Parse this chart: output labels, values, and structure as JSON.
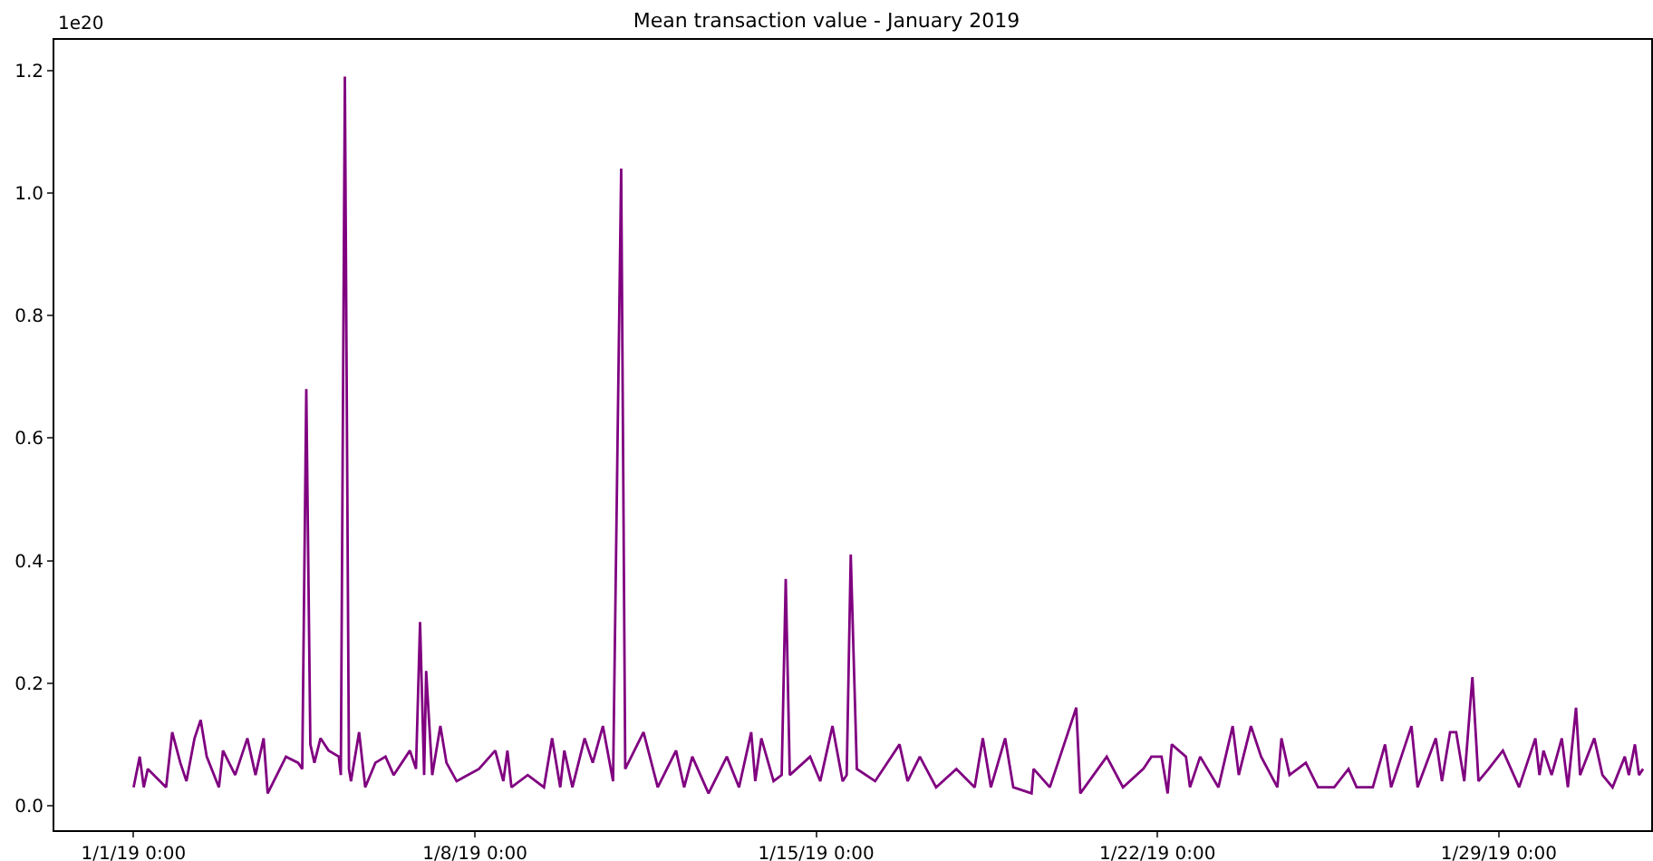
{
  "chart_data": {
    "type": "line",
    "title": "Mean transaction value - January 2019",
    "annotations": [
      "1e20"
    ],
    "x": [
      "2019-01-01T00:00",
      "2019-01-01T03:00",
      "2019-01-01T05:00",
      "2019-01-01T07:00",
      "2019-01-01T16:00",
      "2019-01-01T19:00",
      "2019-01-01T23:00",
      "2019-01-02T02:00",
      "2019-01-02T06:00",
      "2019-01-02T09:00",
      "2019-01-02T12:00",
      "2019-01-02T18:00",
      "2019-01-02T20:00",
      "2019-01-03T02:00",
      "2019-01-03T08:00",
      "2019-01-03T12:00",
      "2019-01-03T16:00",
      "2019-01-03T18:00",
      "2019-01-04T03:00",
      "2019-01-04T09:00",
      "2019-01-04T11:00",
      "2019-01-04T13:00",
      "2019-01-04T15:00",
      "2019-01-04T17:00",
      "2019-01-04T20:00",
      "2019-01-05T00:00",
      "2019-01-05T05:00",
      "2019-01-05T06:00",
      "2019-01-05T08:00",
      "2019-01-05T10:00",
      "2019-01-05T11:00",
      "2019-01-05T15:00",
      "2019-01-05T18:00",
      "2019-01-05T23:00",
      "2019-01-06T04:00",
      "2019-01-06T08:00",
      "2019-01-06T16:00",
      "2019-01-06T19:00",
      "2019-01-06T21:00",
      "2019-01-06T23:00",
      "2019-01-07T00:00",
      "2019-01-07T03:00",
      "2019-01-07T07:00",
      "2019-01-07T10:00",
      "2019-01-07T15:00",
      "2019-01-08T02:00",
      "2019-01-08T10:00",
      "2019-01-08T14:00",
      "2019-01-08T16:00",
      "2019-01-08T18:00",
      "2019-01-09T02:00",
      "2019-01-09T10:00",
      "2019-01-09T14:00",
      "2019-01-09T18:00",
      "2019-01-09T20:00",
      "2019-01-10T00:00",
      "2019-01-10T06:00",
      "2019-01-10T10:00",
      "2019-01-10T15:00",
      "2019-01-10T20:00",
      "2019-01-11T00:00",
      "2019-01-11T02:00",
      "2019-01-11T11:00",
      "2019-01-11T18:00",
      "2019-01-12T03:00",
      "2019-01-12T07:00",
      "2019-01-12T11:00",
      "2019-01-12T19:00",
      "2019-01-13T04:00",
      "2019-01-13T10:00",
      "2019-01-13T16:00",
      "2019-01-13T18:00",
      "2019-01-13T21:00",
      "2019-01-14T03:00",
      "2019-01-14T07:00",
      "2019-01-14T09:00",
      "2019-01-14T11:00",
      "2019-01-14T21:00",
      "2019-01-15T02:00",
      "2019-01-15T08:00",
      "2019-01-15T13:00",
      "2019-01-15T15:00",
      "2019-01-15T17:00",
      "2019-01-15T20:00",
      "2019-01-16T05:00",
      "2019-01-16T17:00",
      "2019-01-16T21:00",
      "2019-01-17T03:00",
      "2019-01-17T11:00",
      "2019-01-17T21:00",
      "2019-01-18T06:00",
      "2019-01-18T10:00",
      "2019-01-18T14:00",
      "2019-01-18T21:00",
      "2019-01-19T01:00",
      "2019-01-19T10:00",
      "2019-01-19T11:00",
      "2019-01-19T19:00",
      "2019-01-20T03:00",
      "2019-01-20T08:00",
      "2019-01-20T10:00",
      "2019-01-20T23:00",
      "2019-01-21T07:00",
      "2019-01-21T17:00",
      "2019-01-21T21:00",
      "2019-01-22T02:00",
      "2019-01-22T05:00",
      "2019-01-22T07:00",
      "2019-01-22T14:00",
      "2019-01-22T16:00",
      "2019-01-22T21:00",
      "2019-01-23T06:00",
      "2019-01-23T13:00",
      "2019-01-23T16:00",
      "2019-01-23T22:00",
      "2019-01-24T03:00",
      "2019-01-24T11:00",
      "2019-01-24T13:00",
      "2019-01-24T17:00",
      "2019-01-25T01:00",
      "2019-01-25T07:00",
      "2019-01-25T15:00",
      "2019-01-25T22:00",
      "2019-01-26T02:00",
      "2019-01-26T10:00",
      "2019-01-26T16:00",
      "2019-01-26T19:00",
      "2019-01-27T05:00",
      "2019-01-27T08:00",
      "2019-01-27T17:00",
      "2019-01-27T20:00",
      "2019-01-28T00:00",
      "2019-01-28T03:00",
      "2019-01-28T07:00",
      "2019-01-28T11:00",
      "2019-01-28T14:00",
      "2019-01-28T19:00",
      "2019-01-29T02:00",
      "2019-01-29T10:00",
      "2019-01-29T18:00",
      "2019-01-29T20:00",
      "2019-01-29T22:00",
      "2019-01-30T02:00",
      "2019-01-30T07:00",
      "2019-01-30T10:00",
      "2019-01-30T14:00",
      "2019-01-30T16:00",
      "2019-01-30T23:00",
      "2019-01-31T03:00",
      "2019-01-31T08:00",
      "2019-01-31T14:00",
      "2019-01-31T16:00",
      "2019-01-31T19:00",
      "2019-01-31T21:00",
      "2019-01-31T23:00"
    ],
    "series": [
      {
        "color": "#800080",
        "values": [
          0.03,
          0.08,
          0.03,
          0.06,
          0.03,
          0.12,
          0.07,
          0.04,
          0.11,
          0.14,
          0.08,
          0.03,
          0.09,
          0.05,
          0.11,
          0.05,
          0.11,
          0.02,
          0.08,
          0.07,
          0.06,
          0.68,
          0.1,
          0.07,
          0.11,
          0.09,
          0.08,
          0.05,
          1.19,
          0.06,
          0.04,
          0.12,
          0.03,
          0.07,
          0.08,
          0.05,
          0.09,
          0.06,
          0.3,
          0.05,
          0.22,
          0.05,
          0.13,
          0.07,
          0.04,
          0.06,
          0.09,
          0.04,
          0.09,
          0.03,
          0.05,
          0.03,
          0.11,
          0.03,
          0.09,
          0.03,
          0.11,
          0.07,
          0.13,
          0.04,
          1.04,
          0.06,
          0.12,
          0.03,
          0.09,
          0.03,
          0.08,
          0.02,
          0.08,
          0.03,
          0.12,
          0.04,
          0.11,
          0.04,
          0.05,
          0.37,
          0.05,
          0.08,
          0.04,
          0.13,
          0.04,
          0.05,
          0.41,
          0.06,
          0.04,
          0.1,
          0.04,
          0.08,
          0.03,
          0.06,
          0.03,
          0.11,
          0.03,
          0.11,
          0.03,
          0.02,
          0.06,
          0.03,
          0.11,
          0.16,
          0.02,
          0.08,
          0.03,
          0.06,
          0.08,
          0.08,
          0.02,
          0.1,
          0.08,
          0.03,
          0.08,
          0.03,
          0.13,
          0.05,
          0.13,
          0.08,
          0.03,
          0.11,
          0.05,
          0.07,
          0.03,
          0.03,
          0.06,
          0.03,
          0.03,
          0.1,
          0.03,
          0.13,
          0.03,
          0.11,
          0.04,
          0.12,
          0.12,
          0.04,
          0.21,
          0.04,
          0.06,
          0.09,
          0.03,
          0.11,
          0.05,
          0.09,
          0.05,
          0.11,
          0.03,
          0.16,
          0.05,
          0.11,
          0.05,
          0.03,
          0.08,
          0.05,
          0.1,
          0.05,
          0.06
        ]
      }
    ],
    "xlim": [
      "2018-12-30T09:00",
      "2019-02-01T03:00"
    ],
    "xticks": [
      {
        "value": "2019-01-01",
        "label": "1/1/19 0:00"
      },
      {
        "value": "2019-01-08",
        "label": "1/8/19 0:00"
      },
      {
        "value": "2019-01-15",
        "label": "1/15/19 0:00"
      },
      {
        "value": "2019-01-22",
        "label": "1/22/19 0:00"
      },
      {
        "value": "2019-01-29",
        "label": "1/29/19 0:00"
      }
    ],
    "ylim": [
      -0.04,
      1.25
    ],
    "yticks": [
      {
        "value": 0,
        "label": "0.0"
      },
      {
        "value": 0.2,
        "label": "0.2"
      },
      {
        "value": 0.4,
        "label": "0.4"
      },
      {
        "value": 0.6,
        "label": "0.6"
      },
      {
        "value": 0.8,
        "label": "0.8"
      },
      {
        "value": 1.0,
        "label": "1.0"
      },
      {
        "value": 1.2,
        "label": "1.2"
      }
    ],
    "grid": false,
    "marker": "none",
    "line_style": "solid"
  }
}
